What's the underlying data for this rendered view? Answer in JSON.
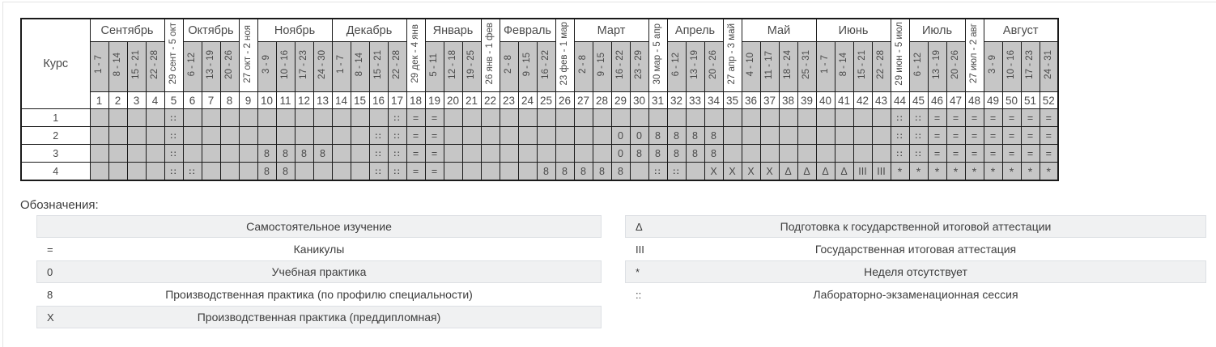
{
  "colors": {
    "cell_gray": "#c6c6c6",
    "table_border": "#1a1a1a",
    "table_text": "#4a4a4a",
    "legend_gray": "#f0f1f2",
    "legend_border": "#dde0e4",
    "frame_line": "#e3e3e3"
  },
  "calendar": {
    "course_header": "Курс",
    "months": [
      {
        "label": "Сентябрь",
        "weeks": 4
      },
      {
        "label": "29 сент - 5 окт",
        "weeks": 1,
        "transition": true
      },
      {
        "label": "Октябрь",
        "weeks": 3
      },
      {
        "label": "27 окт - 2 ноя",
        "weeks": 1,
        "transition": true
      },
      {
        "label": "Ноябрь",
        "weeks": 4
      },
      {
        "label": "Декабрь",
        "weeks": 4
      },
      {
        "label": "29 дек - 4 янв",
        "weeks": 1,
        "transition": true
      },
      {
        "label": "Январь",
        "weeks": 3
      },
      {
        "label": "26 янв - 1 фев",
        "weeks": 1,
        "transition": true
      },
      {
        "label": "Февраль",
        "weeks": 3
      },
      {
        "label": "23 фев - 1 мар",
        "weeks": 1,
        "transition": true
      },
      {
        "label": "Март",
        "weeks": 4
      },
      {
        "label": "30 мар - 5 апр",
        "weeks": 1,
        "transition": true
      },
      {
        "label": "Апрель",
        "weeks": 3
      },
      {
        "label": "27 апр - 3 май",
        "weeks": 1,
        "transition": true
      },
      {
        "label": "Май",
        "weeks": 4
      },
      {
        "label": "Июнь",
        "weeks": 4
      },
      {
        "label": "29 июн - 5 июл",
        "weeks": 1,
        "transition": true
      },
      {
        "label": "Июль",
        "weeks": 3
      },
      {
        "label": "27 июл - 2 авг",
        "weeks": 1,
        "transition": true
      },
      {
        "label": "Август",
        "weeks": 4
      }
    ],
    "week_ranges": [
      "1 - 7",
      "8 - 14",
      "15 - 21",
      "22 - 28",
      "",
      "6 - 12",
      "13 - 19",
      "20 - 26",
      "",
      "3 - 9",
      "10 - 16",
      "17 - 23",
      "24 - 30",
      "1 - 7",
      "8 - 14",
      "15 - 21",
      "22 - 28",
      "",
      "5 - 11",
      "12 - 18",
      "19 - 25",
      "",
      "2 - 8",
      "9 - 15",
      "16 - 22",
      "",
      "2 - 8",
      "9 - 15",
      "16 - 22",
      "23 - 29",
      "",
      "6 - 12",
      "13 - 19",
      "20 - 26",
      "",
      "4 - 10",
      "11 - 17",
      "18 - 24",
      "25 - 31",
      "1 - 7",
      "8 - 14",
      "15 - 21",
      "22 - 28",
      "",
      "6 - 12",
      "13 - 19",
      "20 - 26",
      "",
      "3 - 9",
      "10 - 16",
      "17 - 23",
      "24 - 31"
    ],
    "week_numbers": [
      1,
      2,
      3,
      4,
      5,
      6,
      7,
      8,
      9,
      10,
      11,
      12,
      13,
      14,
      15,
      16,
      17,
      18,
      19,
      20,
      21,
      22,
      23,
      24,
      25,
      26,
      27,
      28,
      29,
      30,
      31,
      32,
      33,
      34,
      35,
      36,
      37,
      38,
      39,
      40,
      41,
      42,
      43,
      44,
      45,
      46,
      47,
      48,
      49,
      50,
      51,
      52
    ],
    "courses": [
      {
        "label": "1",
        "cells": [
          "",
          "",
          "",
          "",
          "::",
          "",
          "",
          "",
          "",
          "",
          "",
          "",
          "",
          "",
          "",
          "",
          "::",
          "=",
          "=",
          "",
          "",
          "",
          "",
          "",
          "",
          "",
          "",
          "",
          "",
          "",
          "",
          "",
          "",
          "",
          "",
          "",
          "",
          "",
          "",
          "",
          "",
          "",
          "",
          "::",
          "::",
          "=",
          "=",
          "=",
          "=",
          "=",
          "=",
          "="
        ]
      },
      {
        "label": "2",
        "cells": [
          "",
          "",
          "",
          "",
          "::",
          "",
          "",
          "",
          "",
          "",
          "",
          "",
          "",
          "",
          "",
          "::",
          "::",
          "=",
          "=",
          "",
          "",
          "",
          "",
          "",
          "",
          "",
          "",
          "",
          "0",
          "0",
          "8",
          "8",
          "8",
          "8",
          "",
          "",
          "",
          "",
          "",
          "",
          "",
          "",
          "",
          "::",
          "::",
          "=",
          "=",
          "=",
          "=",
          "=",
          "=",
          "="
        ]
      },
      {
        "label": "3",
        "cells": [
          "",
          "",
          "",
          "",
          "::",
          "",
          "",
          "",
          "",
          "8",
          "8",
          "8",
          "8",
          "",
          "",
          "::",
          "::",
          "=",
          "=",
          "",
          "",
          "",
          "",
          "",
          "",
          "",
          "",
          "",
          "0",
          "8",
          "8",
          "8",
          "8",
          "8",
          "",
          "",
          "",
          "",
          "",
          "",
          "",
          "",
          "",
          "::",
          "::",
          "=",
          "=",
          "=",
          "=",
          "=",
          "=",
          "="
        ]
      },
      {
        "label": "4",
        "cells": [
          "",
          "",
          "",
          "",
          "::",
          "::",
          "",
          "",
          "",
          "8",
          "8",
          "",
          "",
          "",
          "",
          "::",
          "::",
          "=",
          "=",
          "",
          "",
          "",
          "",
          "",
          "8",
          "8",
          "8",
          "8",
          "8",
          "",
          "::",
          "::",
          "",
          "X",
          "X",
          "X",
          "X",
          "Δ",
          "Δ",
          "Δ",
          "Δ",
          "III",
          "III",
          "*",
          "*",
          "*",
          "*",
          "*",
          "*",
          "*",
          "*",
          "*"
        ]
      }
    ]
  },
  "legend": {
    "title": "Обозначения:",
    "left": [
      {
        "symbol": "",
        "label": "Самостоятельное изучение"
      },
      {
        "symbol": "=",
        "label": "Каникулы"
      },
      {
        "symbol": "0",
        "label": "Учебная практика"
      },
      {
        "symbol": "8",
        "label": "Производственная практика (по профилю специальности)"
      },
      {
        "symbol": "X",
        "label": "Производственная практика (преддипломная)"
      }
    ],
    "right": [
      {
        "symbol": "Δ",
        "label": "Подготовка к государственной итоговой аттестации"
      },
      {
        "symbol": "III",
        "label": "Государственная итоговая аттестация"
      },
      {
        "symbol": "*",
        "label": "Неделя отсутствует"
      },
      {
        "symbol": "::",
        "label": "Лабораторно-экзаменационная сессия"
      }
    ]
  }
}
